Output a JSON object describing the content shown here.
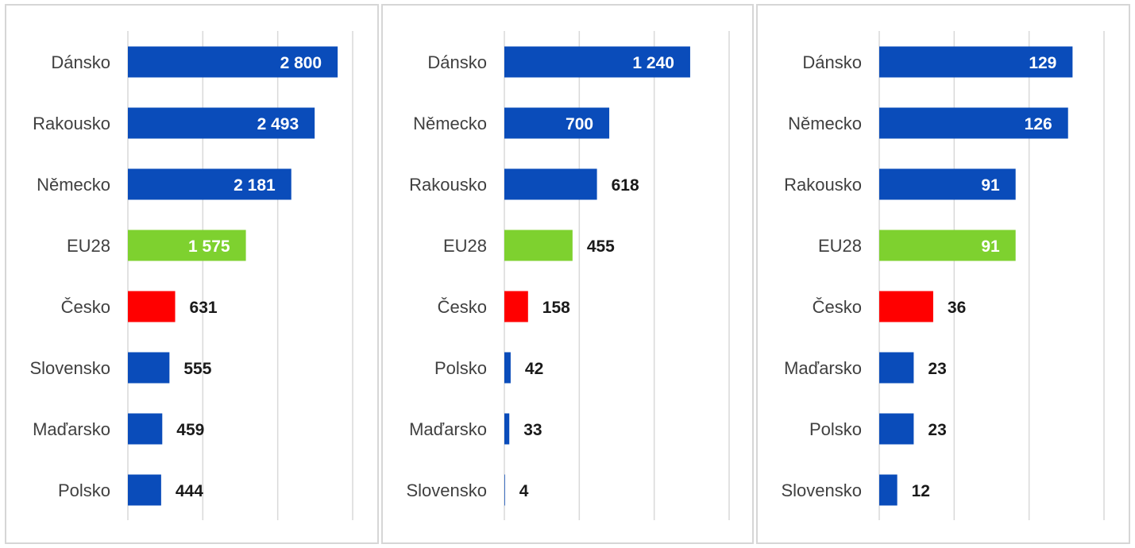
{
  "colors": {
    "default": "#0a4cba",
    "eu": "#7ed12f",
    "cz": "#ff0000",
    "grid": "#d9d9d9",
    "label": "#404040"
  },
  "chart_data": [
    {
      "type": "bar",
      "orientation": "horizontal",
      "title": "",
      "xlabel": "",
      "ylabel": "",
      "xlim": [
        0,
        3000
      ],
      "grid": true,
      "categories": [
        "Dánsko",
        "Rakousko",
        "Německo",
        "EU28",
        "Česko",
        "Slovensko",
        "Maďarsko",
        "Polsko"
      ],
      "values": [
        2800,
        2493,
        2181,
        1575,
        631,
        555,
        459,
        444
      ],
      "value_labels": [
        "2 800",
        "2 493",
        "2 181",
        "1 575",
        "631",
        "555",
        "459",
        "444"
      ],
      "bar_colors": [
        "#0a4cba",
        "#0a4cba",
        "#0a4cba",
        "#7ed12f",
        "#ff0000",
        "#0a4cba",
        "#0a4cba",
        "#0a4cba"
      ]
    },
    {
      "type": "bar",
      "orientation": "horizontal",
      "title": "",
      "xlabel": "",
      "ylabel": "",
      "xlim": [
        0,
        1500
      ],
      "grid": true,
      "categories": [
        "Dánsko",
        "Německo",
        "Rakousko",
        "EU28",
        "Česko",
        "Polsko",
        "Maďarsko",
        "Slovensko"
      ],
      "values": [
        1240,
        700,
        618,
        455,
        158,
        42,
        33,
        4
      ],
      "value_labels": [
        "1 240",
        "700",
        "618",
        "455",
        "158",
        "42",
        "33",
        "4"
      ],
      "bar_colors": [
        "#0a4cba",
        "#0a4cba",
        "#0a4cba",
        "#7ed12f",
        "#ff0000",
        "#0a4cba",
        "#0a4cba",
        "#0a4cba"
      ]
    },
    {
      "type": "bar",
      "orientation": "horizontal",
      "title": "",
      "xlabel": "",
      "ylabel": "",
      "xlim": [
        0,
        150
      ],
      "grid": true,
      "categories": [
        "Dánsko",
        "Německo",
        "Rakousko",
        "EU28",
        "Česko",
        "Maďarsko",
        "Polsko",
        "Slovensko"
      ],
      "values": [
        129,
        126,
        91,
        91,
        36,
        23,
        23,
        12
      ],
      "value_labels": [
        "129",
        "126",
        "91",
        "91",
        "36",
        "23",
        "23",
        "12"
      ],
      "bar_colors": [
        "#0a4cba",
        "#0a4cba",
        "#0a4cba",
        "#7ed12f",
        "#ff0000",
        "#0a4cba",
        "#0a4cba",
        "#0a4cba"
      ]
    }
  ]
}
